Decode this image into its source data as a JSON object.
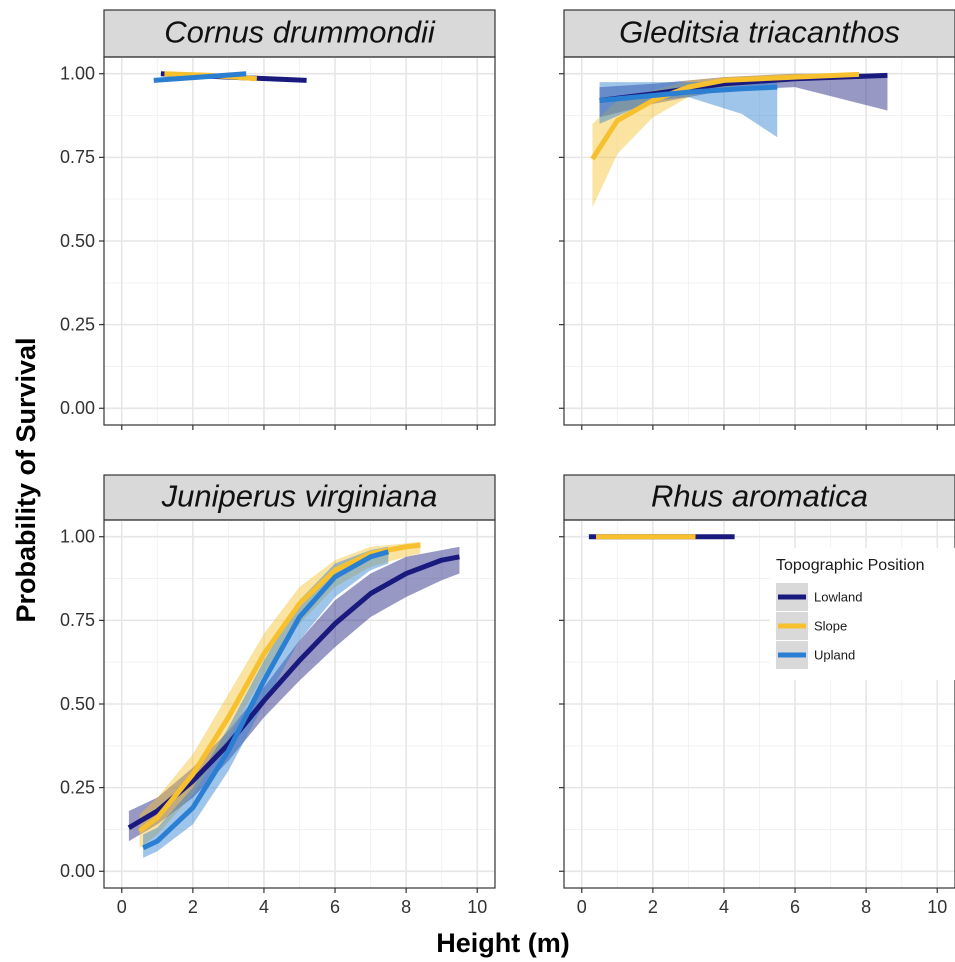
{
  "y_label": "Probability of Survival",
  "x_label": "Height (m)",
  "legend_title": "Topographic Position",
  "chart_data": [
    {
      "type": "line",
      "title": "Cornus drummondii",
      "xlim": [
        -0.5,
        10.5
      ],
      "ylim": [
        -0.05,
        1.05
      ],
      "xticks": [
        0,
        2,
        4,
        6,
        8,
        10
      ],
      "yticks": [
        {
          "value": 0,
          "label": "0.00"
        },
        {
          "value": 0.25,
          "label": "0.25"
        },
        {
          "value": 0.5,
          "label": "0.50"
        },
        {
          "value": 0.75,
          "label": "0.75"
        },
        {
          "value": 1,
          "label": "1.00"
        }
      ],
      "xminorticks": [
        1,
        3,
        5,
        7,
        9
      ],
      "yminorticks": [
        0.125,
        0.375,
        0.625,
        0.875
      ],
      "grid": true,
      "series": [
        {
          "name": "Lowland",
          "color": "#1a1a7e",
          "x": [
            1.1,
            3,
            5.2
          ],
          "values": [
            1.0,
            0.99,
            0.98
          ]
        },
        {
          "name": "Slope",
          "color": "#f7c02e",
          "x": [
            1.2,
            2.5,
            3.8
          ],
          "values": [
            1.0,
            0.995,
            0.985
          ]
        },
        {
          "name": "Upland",
          "color": "#2a7fd3",
          "x": [
            0.9,
            2.2,
            3.5
          ],
          "values": [
            0.98,
            0.99,
            1.0
          ]
        }
      ]
    },
    {
      "type": "line",
      "title": "Gleditsia triacanthos",
      "xlim": [
        -0.5,
        10.5
      ],
      "ylim": [
        -0.05,
        1.05
      ],
      "xticks": [
        0,
        2,
        4,
        6,
        8,
        10
      ],
      "yticks": [
        0,
        0.25,
        0.5,
        0.75,
        1
      ],
      "xminorticks": [
        1,
        3,
        5,
        7,
        9
      ],
      "yminorticks": [
        0.125,
        0.375,
        0.625,
        0.875
      ],
      "grid": true,
      "series": [
        {
          "name": "Lowland",
          "color": "#1a1a7e",
          "x": [
            0.5,
            2,
            4,
            6,
            8.6
          ],
          "values": [
            0.92,
            0.94,
            0.97,
            0.985,
            0.995
          ],
          "lower": [
            0.87,
            0.91,
            0.95,
            0.96,
            0.89
          ],
          "upper": [
            0.96,
            0.97,
            0.99,
            1.0,
            1.0
          ]
        },
        {
          "name": "Slope",
          "color": "#f7c02e",
          "x": [
            0.3,
            1,
            2,
            3,
            4,
            6,
            7.8
          ],
          "values": [
            0.745,
            0.86,
            0.92,
            0.96,
            0.98,
            0.99,
            0.998
          ],
          "lower": [
            0.6,
            0.76,
            0.87,
            0.93,
            0.96,
            0.98,
            0.99
          ],
          "upper": [
            0.85,
            0.92,
            0.95,
            0.98,
            0.99,
            1.0,
            1.0
          ]
        },
        {
          "name": "Upland",
          "color": "#2a7fd3",
          "x": [
            0.5,
            2,
            3,
            4.5,
            5.5
          ],
          "values": [
            0.92,
            0.935,
            0.945,
            0.955,
            0.96
          ],
          "lower": [
            0.85,
            0.92,
            0.93,
            0.88,
            0.81
          ],
          "upper": [
            0.975,
            0.975,
            0.975,
            0.975,
            0.975
          ]
        }
      ]
    },
    {
      "type": "line",
      "title": "Juniperus virginiana",
      "xlim": [
        -0.5,
        10.5
      ],
      "ylim": [
        -0.05,
        1.05
      ],
      "xticks": [
        0,
        2,
        4,
        6,
        8,
        10
      ],
      "yticks": [
        {
          "value": 0,
          "label": "0.00"
        },
        {
          "value": 0.25,
          "label": "0.25"
        },
        {
          "value": 0.5,
          "label": "0.50"
        },
        {
          "value": 0.75,
          "label": "0.75"
        },
        {
          "value": 1,
          "label": "1.00"
        }
      ],
      "xminorticks": [
        1,
        3,
        5,
        7,
        9
      ],
      "yminorticks": [
        0.125,
        0.375,
        0.625,
        0.875
      ],
      "grid": true,
      "series": [
        {
          "name": "Lowland",
          "color": "#1a1a7e",
          "x": [
            0.2,
            1,
            2,
            3,
            4,
            5,
            6,
            7,
            8,
            9,
            9.5
          ],
          "values": [
            0.13,
            0.18,
            0.27,
            0.38,
            0.51,
            0.63,
            0.74,
            0.83,
            0.89,
            0.93,
            0.94
          ],
          "lower": [
            0.09,
            0.14,
            0.22,
            0.33,
            0.46,
            0.57,
            0.67,
            0.76,
            0.82,
            0.87,
            0.89
          ],
          "upper": [
            0.18,
            0.22,
            0.31,
            0.42,
            0.55,
            0.69,
            0.81,
            0.89,
            0.94,
            0.96,
            0.97
          ]
        },
        {
          "name": "Slope",
          "color": "#f7c02e",
          "x": [
            0.5,
            1,
            2,
            3,
            4,
            5,
            6,
            7,
            8,
            8.4
          ],
          "values": [
            0.12,
            0.16,
            0.29,
            0.46,
            0.65,
            0.8,
            0.9,
            0.95,
            0.97,
            0.975
          ],
          "lower": [
            0.07,
            0.11,
            0.23,
            0.4,
            0.59,
            0.74,
            0.85,
            0.91,
            0.94,
            0.95
          ],
          "upper": [
            0.17,
            0.22,
            0.35,
            0.53,
            0.71,
            0.85,
            0.93,
            0.97,
            0.98,
            0.985
          ]
        },
        {
          "name": "Upland",
          "color": "#2a7fd3",
          "x": [
            0.6,
            1,
            2,
            3,
            4,
            5,
            6,
            7,
            7.5
          ],
          "values": [
            0.07,
            0.09,
            0.19,
            0.36,
            0.57,
            0.76,
            0.88,
            0.94,
            0.955
          ],
          "lower": [
            0.04,
            0.06,
            0.14,
            0.3,
            0.5,
            0.69,
            0.82,
            0.9,
            0.92
          ],
          "upper": [
            0.11,
            0.13,
            0.25,
            0.43,
            0.63,
            0.81,
            0.92,
            0.96,
            0.97
          ]
        }
      ]
    },
    {
      "type": "line",
      "title": "Rhus aromatica",
      "xlim": [
        -0.5,
        10.5
      ],
      "ylim": [
        -0.05,
        1.05
      ],
      "xticks": [
        0,
        2,
        4,
        6,
        8,
        10
      ],
      "yticks": [
        0,
        0.25,
        0.5,
        0.75,
        1
      ],
      "xminorticks": [
        1,
        3,
        5,
        7,
        9
      ],
      "yminorticks": [
        0.125,
        0.375,
        0.625,
        0.875
      ],
      "grid": true,
      "legend": "right",
      "series": [
        {
          "name": "Lowland",
          "color": "#1a1a7e",
          "x": [
            0.2,
            4.3
          ],
          "values": [
            1.0,
            1.0
          ]
        },
        {
          "name": "Slope",
          "color": "#f7c02e",
          "x": [
            0.4,
            3.2
          ],
          "values": [
            1.0,
            1.0
          ]
        }
      ]
    }
  ]
}
